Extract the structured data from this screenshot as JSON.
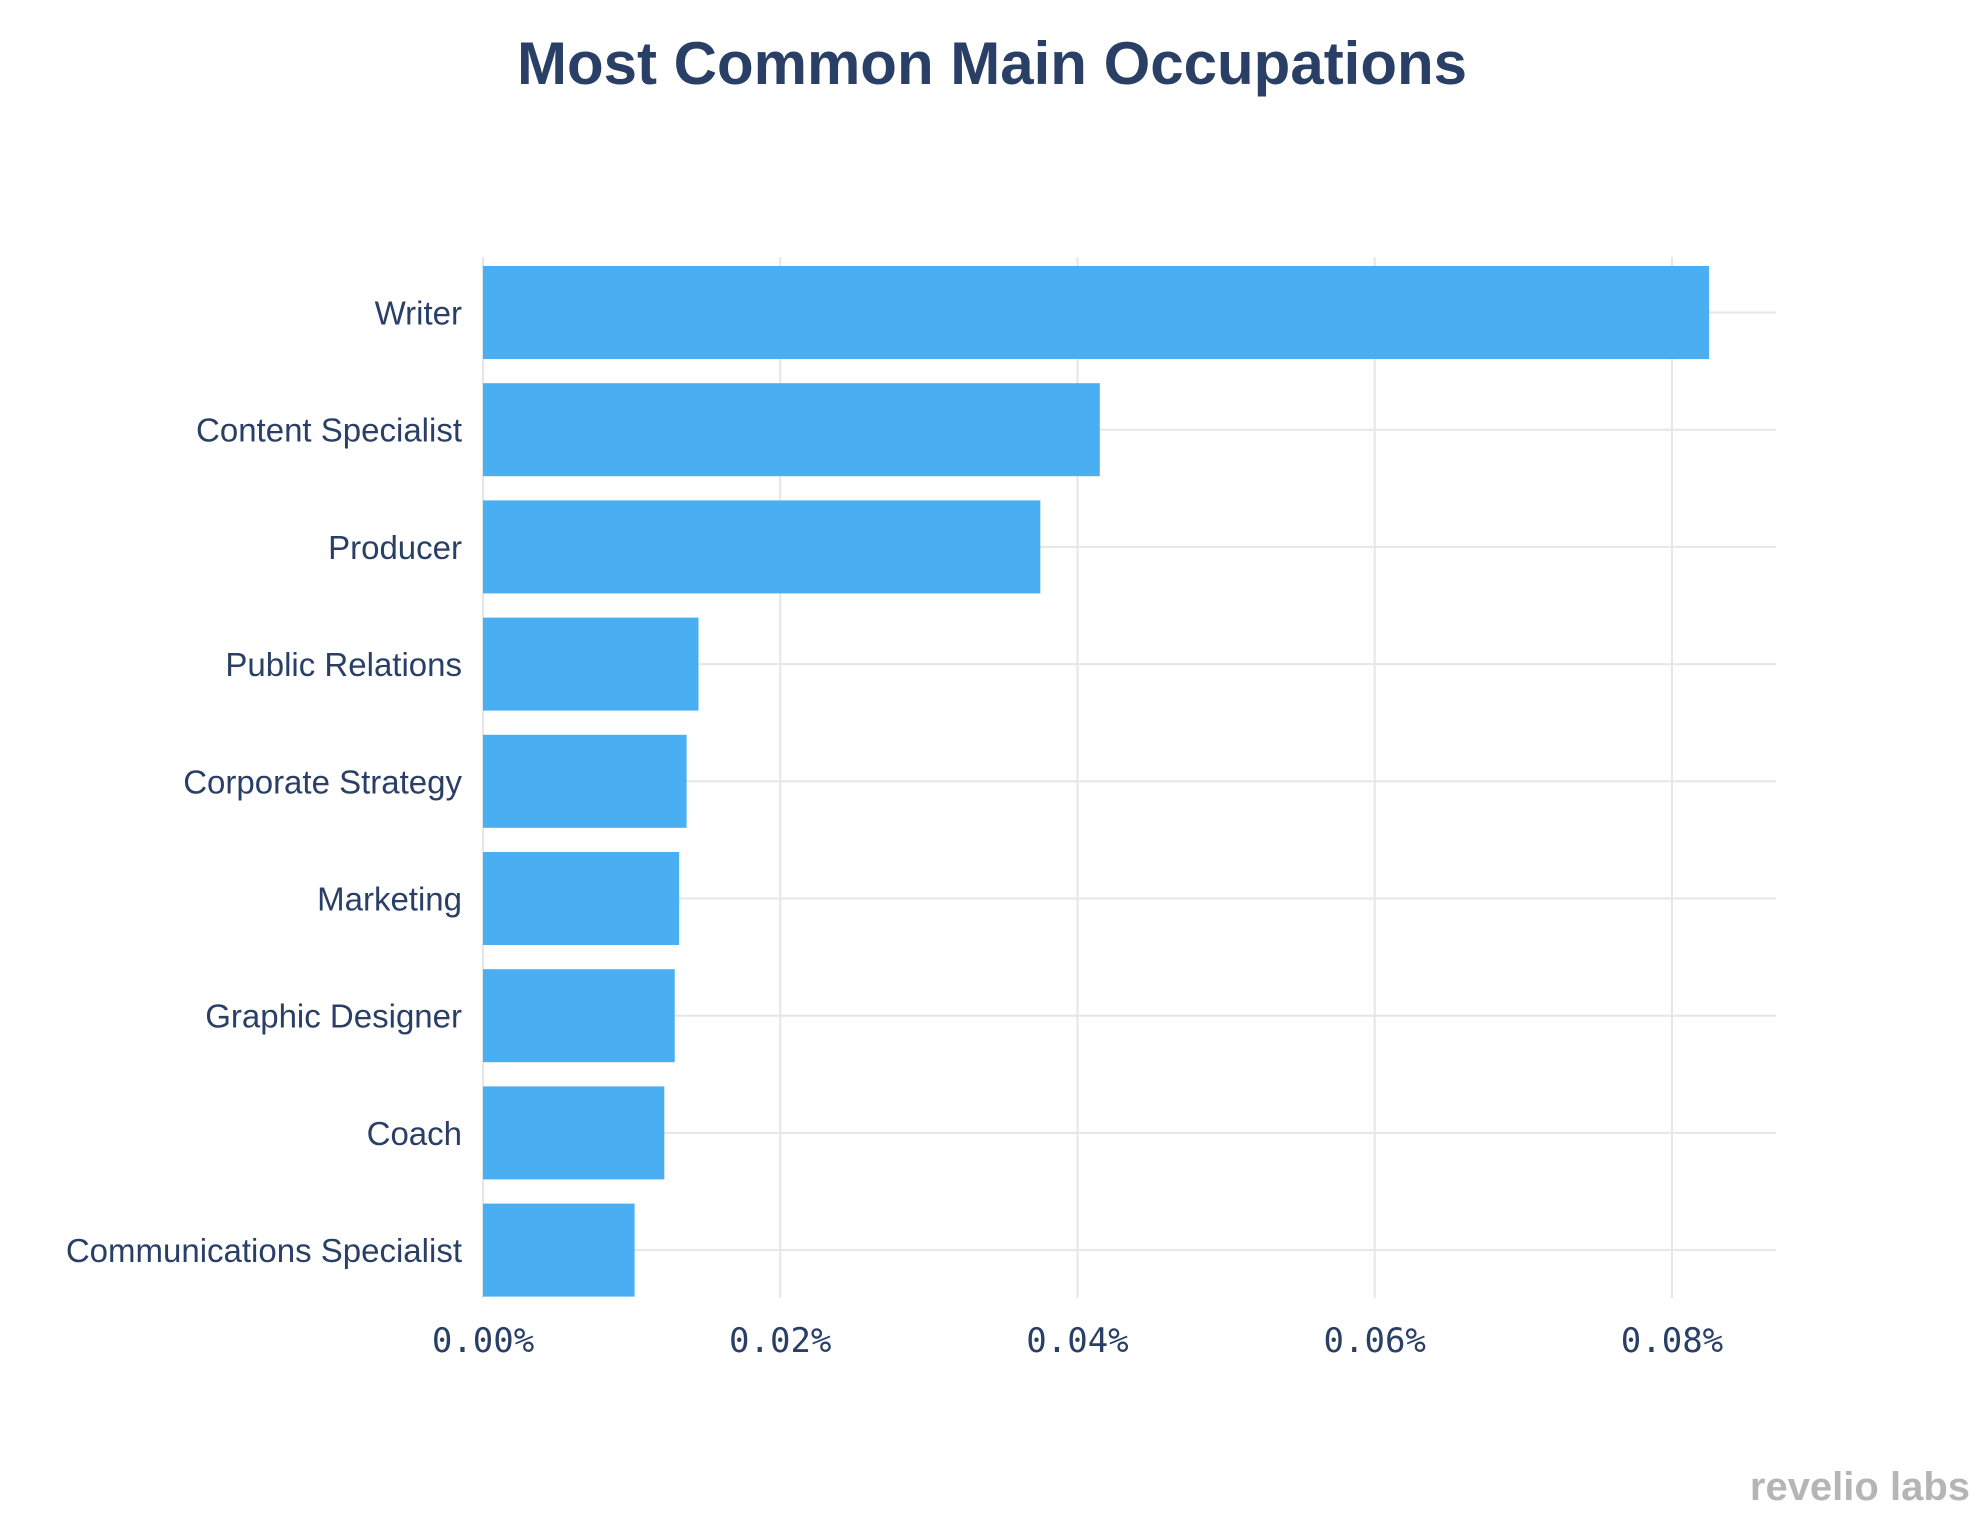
{
  "chart_data": {
    "type": "bar",
    "orientation": "horizontal",
    "title": "Most Common Main Occupations",
    "categories": [
      "Writer",
      "Content Specialist",
      "Producer",
      "Public Relations",
      "Corporate Strategy",
      "Marketing",
      "Graphic Designer",
      "Coach",
      "Communications Specialist"
    ],
    "values": [
      0.0825,
      0.0415,
      0.0375,
      0.0145,
      0.0137,
      0.0132,
      0.0129,
      0.0122,
      0.0102
    ],
    "value_unit": "%",
    "xlim": [
      0,
      0.087
    ],
    "x_ticks": [
      0,
      0.02,
      0.04,
      0.06,
      0.08
    ],
    "x_tick_labels": [
      "0.00%",
      "0.02%",
      "0.04%",
      "0.06%",
      "0.08%"
    ],
    "grid": true,
    "bar_color": "#4aaef3"
  },
  "brand": {
    "text": "revelio labs"
  }
}
